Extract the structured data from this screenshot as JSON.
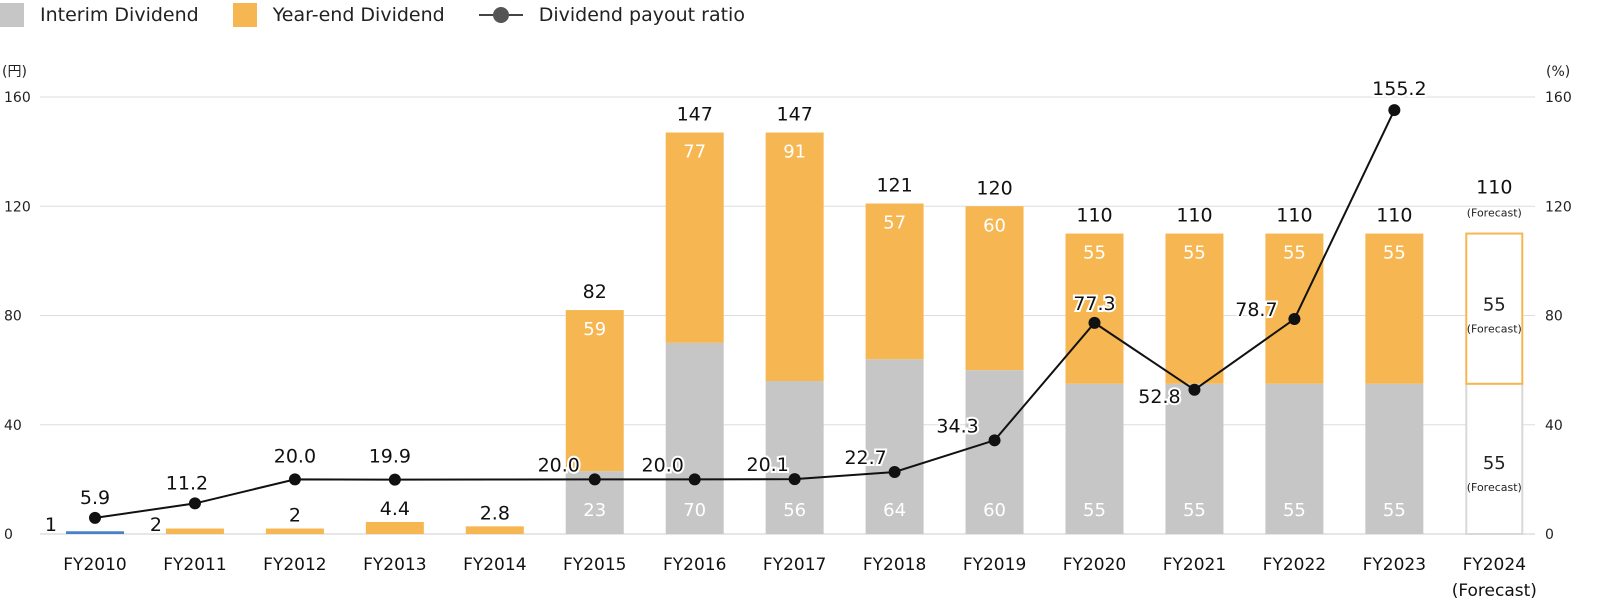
{
  "legend": {
    "interim_label": "Interim Dividend",
    "yearend_label": "Year-end Dividend",
    "ratio_label": "Dividend payout ratio"
  },
  "colors": {
    "interim": "#c6c6c6",
    "yearend": "#f6b752",
    "fy2010": "#4a80c8",
    "line": "#111111",
    "grid": "#dddddd"
  },
  "chart_data": {
    "type": "bar",
    "left_axis": {
      "unit": "(円)",
      "ticks": [
        "0",
        "40",
        "80",
        "120",
        "160"
      ],
      "ylim": [
        0,
        160
      ]
    },
    "right_axis": {
      "unit": "(%)",
      "ticks": [
        "0",
        "40",
        "80",
        "120",
        "160"
      ],
      "ylim": [
        0,
        160
      ]
    },
    "categories": [
      "FY2010",
      "FY2011",
      "FY2012",
      "FY2013",
      "FY2014",
      "FY2015",
      "FY2016",
      "FY2017",
      "FY2018",
      "FY2019",
      "FY2020",
      "FY2021",
      "FY2022",
      "FY2023",
      "FY2024"
    ],
    "category_sublabels": [
      "",
      "",
      "",
      "",
      "",
      "",
      "",
      "",
      "",
      "",
      "",
      "",
      "",
      "",
      "(Forecast)"
    ],
    "series": [
      {
        "name": "Interim Dividend",
        "values": [
          0,
          0,
          0,
          0,
          0,
          23,
          70,
          56,
          64,
          60,
          55,
          55,
          55,
          55,
          55
        ]
      },
      {
        "name": "Year-end Dividend",
        "values": [
          1,
          2,
          2,
          4.4,
          2.8,
          59,
          77,
          91,
          57,
          60,
          55,
          55,
          55,
          55,
          55
        ]
      },
      {
        "name": "Dividend payout ratio",
        "values": [
          5.9,
          11.2,
          20.0,
          19.9,
          null,
          20.0,
          20.0,
          20.1,
          22.7,
          34.3,
          77.3,
          52.8,
          78.7,
          155.2,
          null
        ]
      }
    ],
    "interim_labels": [
      "",
      "",
      "",
      "",
      "",
      "23",
      "70",
      "56",
      "64",
      "60",
      "55",
      "55",
      "55",
      "55",
      "55"
    ],
    "yearend_labels": [
      "",
      "",
      "",
      "",
      "",
      "59",
      "77",
      "91",
      "57",
      "60",
      "55",
      "55",
      "55",
      "55",
      "55"
    ],
    "total_labels": [
      "1",
      "2",
      "2",
      "4.4",
      "2.8",
      "82",
      "147",
      "147",
      "121",
      "120",
      "110",
      "110",
      "110",
      "110",
      "110"
    ],
    "ratio_labels": [
      "5.9",
      "11.2",
      "20.0",
      "19.9",
      "",
      "20.0",
      "20.0",
      "20.1",
      "22.7",
      "34.3",
      "77.3",
      "52.8",
      "78.7",
      "155.2",
      ""
    ],
    "forecast_note": "(Forecast)",
    "forecast_index": 14
  }
}
